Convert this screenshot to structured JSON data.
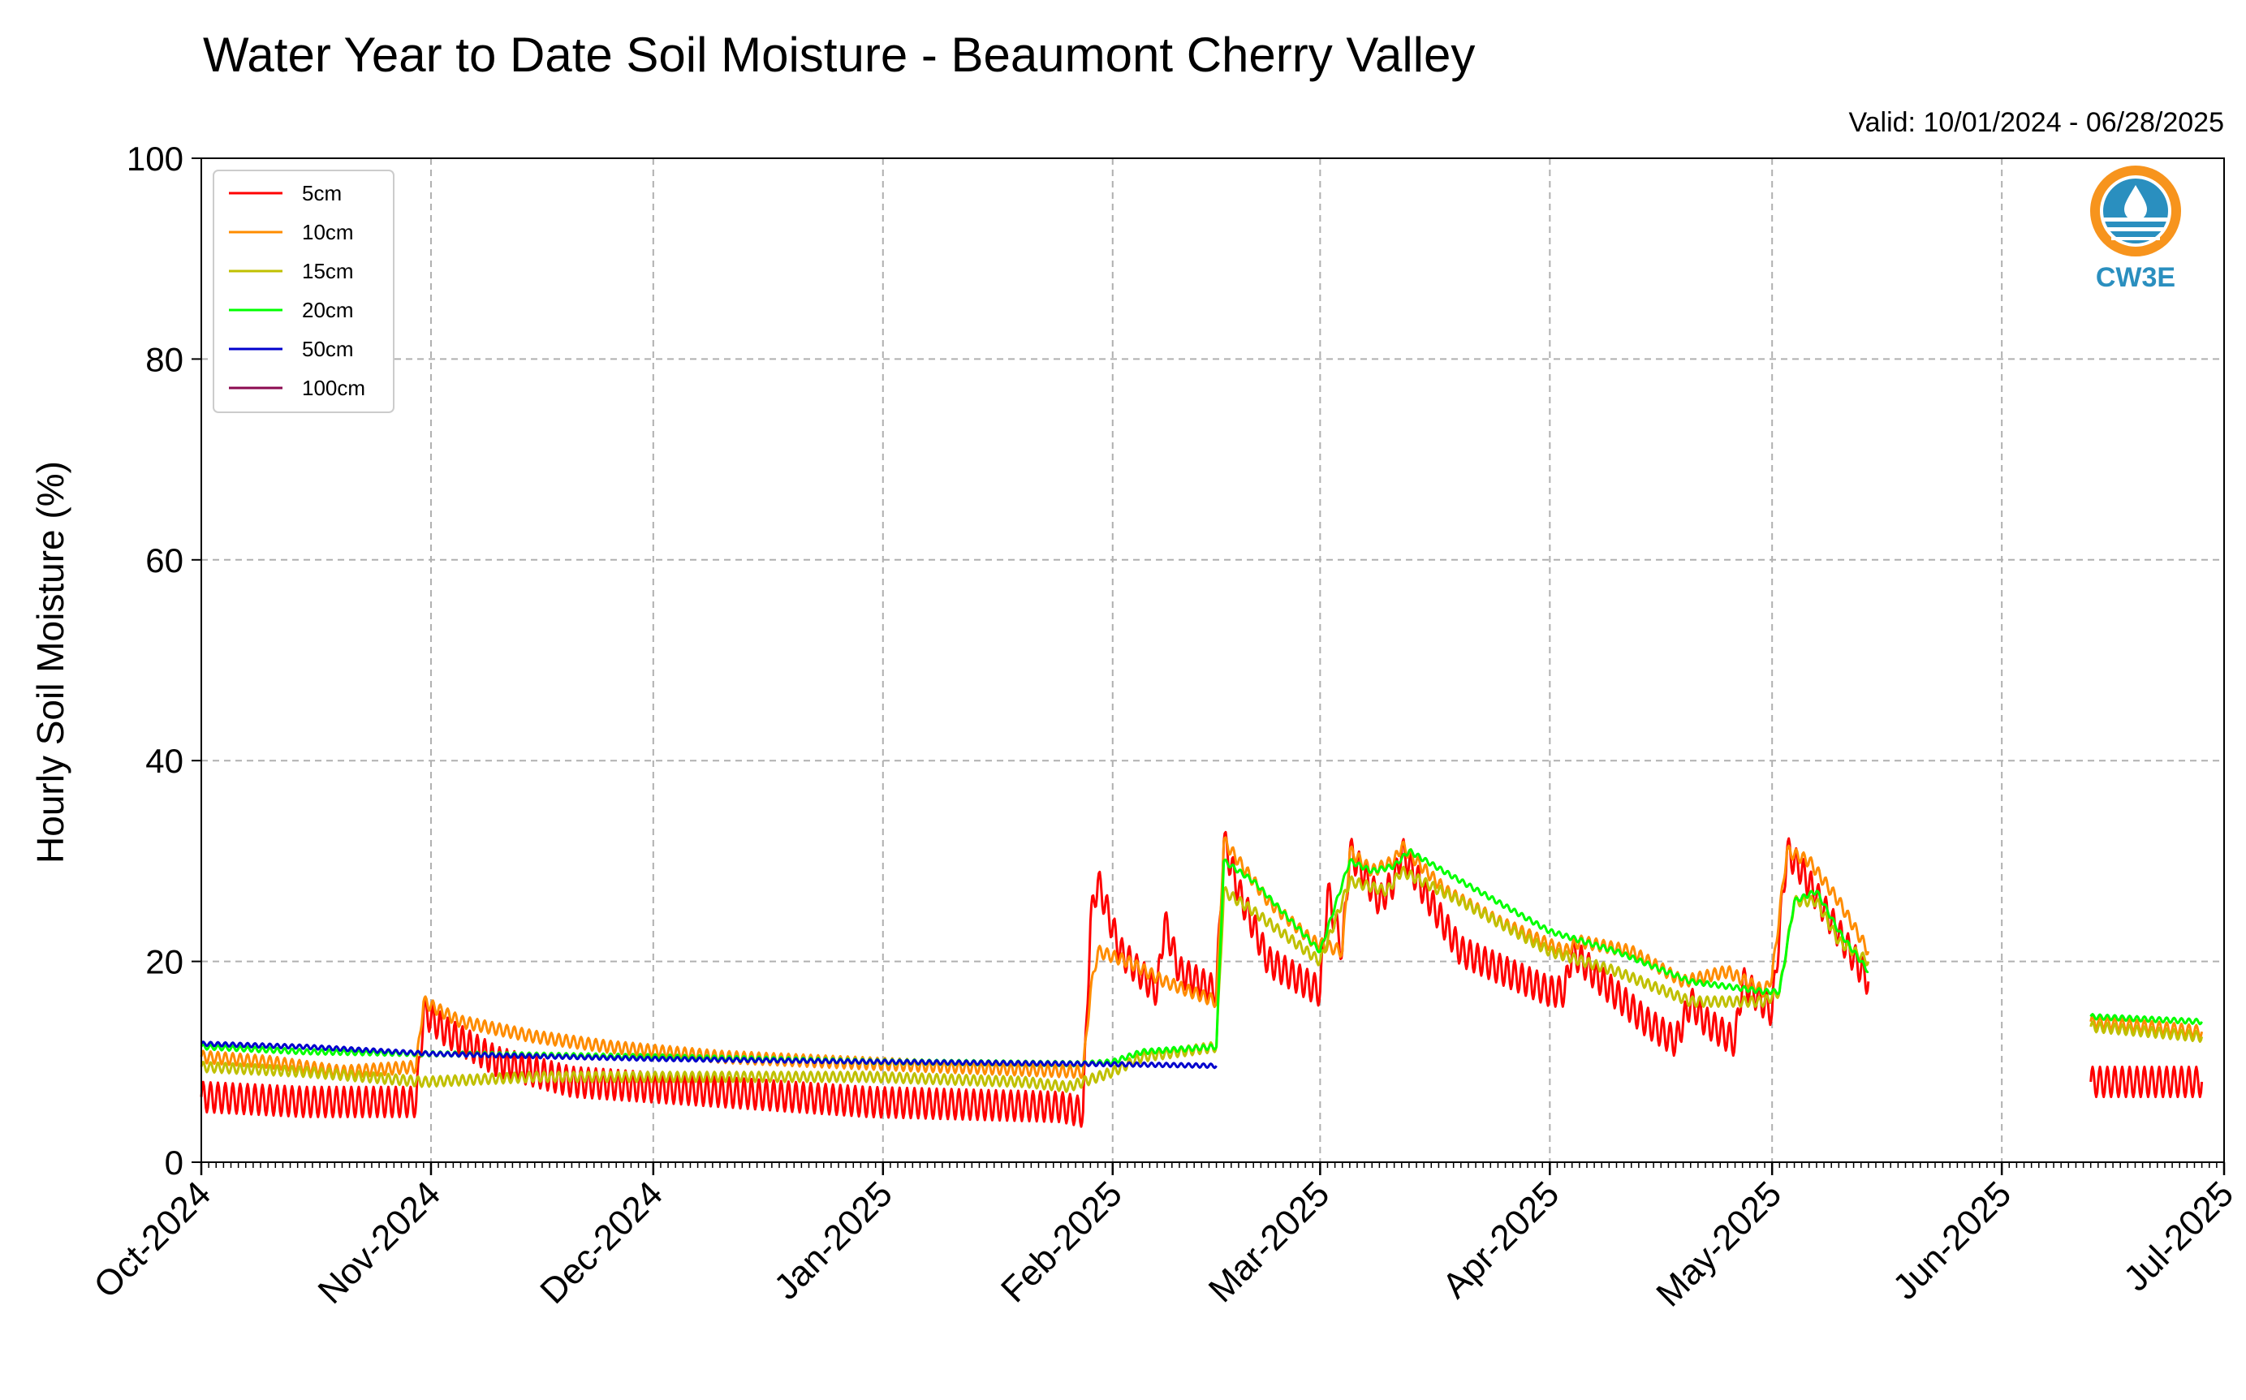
{
  "chart_data": {
    "type": "line",
    "title": "Water Year to Date Soil Moisture - Beaumont Cherry Valley",
    "subtitle": "Valid: 10/01/2024 - 06/28/2025",
    "xlabel": "",
    "ylabel": "Hourly Soil Moisture (%)",
    "ylim": [
      0,
      100
    ],
    "yticks": [
      "0",
      "20",
      "40",
      "60",
      "80",
      "100"
    ],
    "xlim": [
      "2024-10-01",
      "2025-07-01"
    ],
    "xticks": [
      {
        "date": "2024-10-01",
        "label": "Oct-2024"
      },
      {
        "date": "2024-11-01",
        "label": "Nov-2024"
      },
      {
        "date": "2024-12-01",
        "label": "Dec-2024"
      },
      {
        "date": "2025-01-01",
        "label": "Jan-2025"
      },
      {
        "date": "2025-02-01",
        "label": "Feb-2025"
      },
      {
        "date": "2025-03-01",
        "label": "Mar-2025"
      },
      {
        "date": "2025-04-01",
        "label": "Apr-2025"
      },
      {
        "date": "2025-05-01",
        "label": "May-2025"
      },
      {
        "date": "2025-06-01",
        "label": "Jun-2025"
      },
      {
        "date": "2025-07-01",
        "label": "Jul-2025"
      }
    ],
    "grid": true,
    "legend_position": "top-left",
    "series": [
      {
        "name": "5cm",
        "color": "#ff0000",
        "amplitude": 1.5,
        "segments": [
          [
            [
              "2024-10-01",
              6.5
            ],
            [
              "2024-10-15",
              6.0
            ],
            [
              "2024-10-30",
              6.0
            ],
            [
              "2024-10-31",
              15.0
            ],
            [
              "2024-11-03",
              13.0
            ],
            [
              "2024-11-10",
              10.0
            ],
            [
              "2024-11-20",
              8.0
            ],
            [
              "2024-12-10",
              7.0
            ],
            [
              "2024-12-30",
              6.0
            ],
            [
              "2025-01-25",
              5.5
            ],
            [
              "2025-01-28",
              5.0
            ],
            [
              "2025-01-29",
              24.0
            ],
            [
              "2025-01-30",
              28.0
            ],
            [
              "2025-02-02",
              21.0
            ],
            [
              "2025-02-07",
              17.0
            ],
            [
              "2025-02-08",
              24.0
            ],
            [
              "2025-02-10",
              19.0
            ],
            [
              "2025-02-15",
              17.0
            ],
            [
              "2025-02-16",
              32.0
            ],
            [
              "2025-02-18",
              27.0
            ],
            [
              "2025-02-22",
              20.0
            ],
            [
              "2025-03-01",
              17.0
            ],
            [
              "2025-03-02",
              27.0
            ],
            [
              "2025-03-04",
              21.0
            ],
            [
              "2025-03-05",
              31.0
            ],
            [
              "2025-03-09",
              26.0
            ],
            [
              "2025-03-11",
              28.0
            ],
            [
              "2025-03-12",
              31.0
            ],
            [
              "2025-03-15",
              27.0
            ],
            [
              "2025-03-20",
              21.0
            ],
            [
              "2025-04-01",
              17.0
            ],
            [
              "2025-04-03",
              17.0
            ],
            [
              "2025-04-04",
              21.0
            ],
            [
              "2025-04-08",
              18.0
            ],
            [
              "2025-04-14",
              14.0
            ],
            [
              "2025-04-18",
              12.0
            ],
            [
              "2025-04-20",
              16.0
            ],
            [
              "2025-04-22",
              14.0
            ],
            [
              "2025-04-26",
              12.0
            ],
            [
              "2025-04-27",
              18.0
            ],
            [
              "2025-05-01",
              15.0
            ],
            [
              "2025-05-03",
              31.0
            ],
            [
              "2025-05-05",
              29.0
            ],
            [
              "2025-05-09",
              24.0
            ],
            [
              "2025-05-14",
              18.0
            ]
          ],
          [
            [
              "2025-06-13",
              8.0
            ],
            [
              "2025-06-28",
              8.0
            ]
          ]
        ]
      },
      {
        "name": "10cm",
        "color": "#ff8c00",
        "amplitude": 0.6,
        "segments": [
          [
            [
              "2024-10-01",
              10.5
            ],
            [
              "2024-10-10",
              10.0
            ],
            [
              "2024-10-20",
              9.0
            ],
            [
              "2024-10-30",
              9.5
            ],
            [
              "2024-10-31",
              16.0
            ],
            [
              "2024-11-05",
              14.0
            ],
            [
              "2024-11-15",
              12.5
            ],
            [
              "2024-11-25",
              11.5
            ],
            [
              "2024-12-10",
              10.5
            ],
            [
              "2024-12-25",
              10.0
            ],
            [
              "2025-01-10",
              9.5
            ],
            [
              "2025-01-28",
              9.0
            ],
            [
              "2025-01-29",
              17.0
            ],
            [
              "2025-01-30",
              21.0
            ],
            [
              "2025-02-03",
              20.0
            ],
            [
              "2025-02-08",
              18.0
            ],
            [
              "2025-02-15",
              16.0
            ],
            [
              "2025-02-16",
              32.0
            ],
            [
              "2025-02-18",
              30.0
            ],
            [
              "2025-02-22",
              26.0
            ],
            [
              "2025-02-28",
              22.0
            ],
            [
              "2025-03-04",
              21.0
            ],
            [
              "2025-03-05",
              31.0
            ],
            [
              "2025-03-08",
              29.0
            ],
            [
              "2025-03-11",
              30.0
            ],
            [
              "2025-03-12",
              31.5
            ],
            [
              "2025-03-18",
              27.0
            ],
            [
              "2025-03-25",
              24.0
            ],
            [
              "2025-04-03",
              21.0
            ],
            [
              "2025-04-05",
              22.0
            ],
            [
              "2025-04-12",
              21.0
            ],
            [
              "2025-04-19",
              18.0
            ],
            [
              "2025-04-25",
              19.0
            ],
            [
              "2025-04-30",
              17.0
            ],
            [
              "2025-05-01",
              18.5
            ],
            [
              "2025-05-03",
              31.0
            ],
            [
              "2025-05-06",
              30.0
            ],
            [
              "2025-05-10",
              26.0
            ],
            [
              "2025-05-14",
              21.0
            ]
          ],
          [
            [
              "2025-06-13",
              14.0
            ],
            [
              "2025-06-28",
              13.0
            ]
          ]
        ]
      },
      {
        "name": "15cm",
        "color": "#c0c000",
        "amplitude": 0.5,
        "segments": [
          [
            [
              "2024-10-01",
              9.5
            ],
            [
              "2024-10-15",
              9.0
            ],
            [
              "2024-10-31",
              8.0
            ],
            [
              "2024-11-15",
              8.5
            ],
            [
              "2024-12-01",
              8.5
            ],
            [
              "2024-12-30",
              8.5
            ],
            [
              "2025-01-20",
              8.0
            ],
            [
              "2025-01-26",
              7.5
            ],
            [
              "2025-02-01",
              9.0
            ],
            [
              "2025-02-05",
              10.5
            ],
            [
              "2025-02-15",
              11.5
            ],
            [
              "2025-02-16",
              27.0
            ],
            [
              "2025-02-20",
              25.0
            ],
            [
              "2025-03-01",
              20.0
            ],
            [
              "2025-03-05",
              28.0
            ],
            [
              "2025-03-10",
              27.0
            ],
            [
              "2025-03-12",
              29.0
            ],
            [
              "2025-03-20",
              26.0
            ],
            [
              "2025-04-01",
              21.0
            ],
            [
              "2025-04-10",
              19.0
            ],
            [
              "2025-04-20",
              16.0
            ],
            [
              "2025-04-30",
              16.0
            ],
            [
              "2025-05-02",
              17.0
            ],
            [
              "2025-05-04",
              26.0
            ],
            [
              "2025-05-07",
              26.0
            ],
            [
              "2025-05-10",
              22.0
            ],
            [
              "2025-05-14",
              20.0
            ]
          ],
          [
            [
              "2025-06-13",
              13.5
            ],
            [
              "2025-06-28",
              12.5
            ]
          ]
        ]
      },
      {
        "name": "20cm",
        "color": "#00ff00",
        "amplitude": 0.25,
        "segments": [
          [
            [
              "2024-10-01",
              11.5
            ],
            [
              "2024-10-15",
              11.0
            ],
            [
              "2024-11-01",
              10.8
            ],
            [
              "2024-12-01",
              10.5
            ],
            [
              "2025-01-01",
              10.0
            ],
            [
              "2025-01-28",
              9.8
            ],
            [
              "2025-02-01",
              10.0
            ],
            [
              "2025-02-05",
              11.0
            ],
            [
              "2025-02-15",
              11.5
            ],
            [
              "2025-02-16",
              30.0
            ],
            [
              "2025-02-20",
              28.0
            ],
            [
              "2025-03-01",
              21.0
            ],
            [
              "2025-03-05",
              30.0
            ],
            [
              "2025-03-08",
              29.0
            ],
            [
              "2025-03-11",
              29.5
            ],
            [
              "2025-03-13",
              31.0
            ],
            [
              "2025-03-20",
              28.0
            ],
            [
              "2025-04-01",
              23.0
            ],
            [
              "2025-04-10",
              21.0
            ],
            [
              "2025-04-20",
              18.0
            ],
            [
              "2025-04-30",
              17.0
            ],
            [
              "2025-05-02",
              17.0
            ],
            [
              "2025-05-04",
              26.0
            ],
            [
              "2025-05-07",
              27.0
            ],
            [
              "2025-05-10",
              23.0
            ],
            [
              "2025-05-14",
              19.0
            ]
          ],
          [
            [
              "2025-06-13",
              14.5
            ],
            [
              "2025-06-28",
              14.0
            ]
          ]
        ]
      },
      {
        "name": "50cm",
        "color": "#0000cd",
        "amplitude": 0.2,
        "segments": [
          [
            [
              "2024-10-01",
              11.8
            ],
            [
              "2024-10-15",
              11.5
            ],
            [
              "2024-11-01",
              10.8
            ],
            [
              "2024-12-01",
              10.3
            ],
            [
              "2025-01-01",
              10.0
            ],
            [
              "2025-01-28",
              9.8
            ],
            [
              "2025-02-07",
              9.7
            ],
            [
              "2025-02-15",
              9.6
            ]
          ]
        ]
      },
      {
        "name": "100cm",
        "color": "#8b0a50",
        "amplitude": 0,
        "segments": []
      }
    ]
  },
  "logo": {
    "text": "CW3E",
    "color": "#2a8fbf",
    "accent": "#f7941d"
  }
}
